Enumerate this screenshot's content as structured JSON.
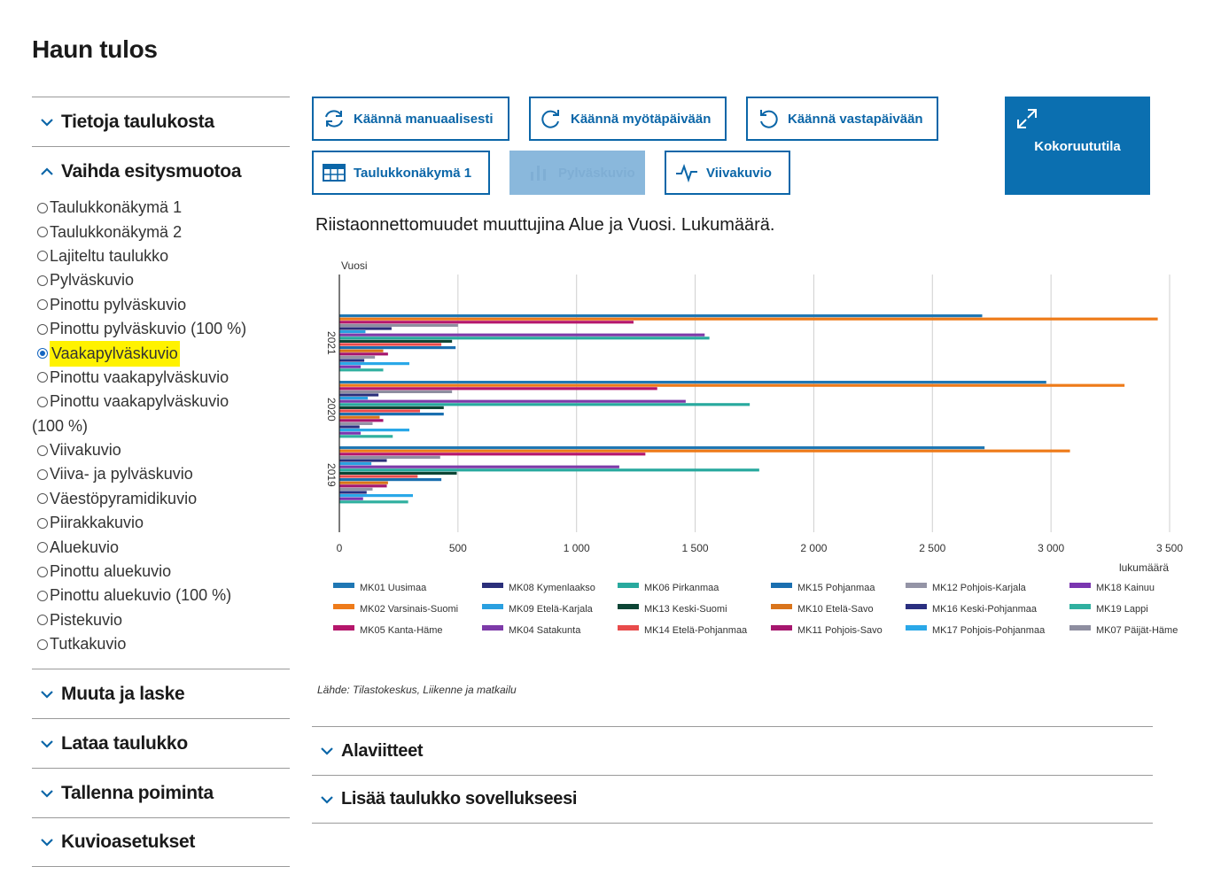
{
  "page": {
    "title": "Haun tulos"
  },
  "sidebar": {
    "sections": [
      {
        "label": "Tietoja taulukosta",
        "expanded": false
      },
      {
        "label": "Vaihda esitysmuotoa",
        "expanded": true
      },
      {
        "label": "Muuta ja laske",
        "expanded": false
      },
      {
        "label": "Lataa taulukko",
        "expanded": false
      },
      {
        "label": "Tallenna poiminta",
        "expanded": false
      },
      {
        "label": "Kuvioasetukset",
        "expanded": false
      }
    ],
    "options": [
      "Taulukkonäkymä 1",
      "Taulukkonäkymä 2",
      "Lajiteltu taulukko",
      "Pylväskuvio",
      "Pinottu pylväskuvio",
      "Pinottu pylväskuvio (100 %)",
      "Vaakapylväskuvio",
      "Pinottu vaakapylväskuvio",
      "Pinottu vaakapylväskuvio",
      "Viivakuvio",
      "Viiva- ja pylväskuvio",
      "Väestöpyramidikuvio",
      "Piirakkakuvio",
      "Aluekuvio",
      "Pinottu aluekuvio",
      "Pinottu aluekuvio (100 %)",
      "Pistekuvio",
      "Tutkakuvio"
    ],
    "option_continuation": "(100 %)",
    "selected_option": "Vaakapylväskuvio"
  },
  "toolbar": {
    "rotate_manual": "Käännä manuaalisesti",
    "rotate_cw": "Käännä myötäpäivään",
    "rotate_ccw": "Käännä vastapäivään",
    "fullscreen": "Kokoruututila",
    "table_view": "Taulukkonäkymä 1",
    "bar_chart": "Pylväskuvio",
    "line_chart": "Viivakuvio"
  },
  "source": "Lähde: Tilastokeskus, Liikenne ja matkailu",
  "bottom_sections": [
    {
      "label": "Alaviitteet"
    },
    {
      "label": "Lisää taulukko sovellukseesi"
    }
  ],
  "colors": {
    "accent": "#0b66a8",
    "highlight": "#fff200"
  },
  "chart_data": {
    "type": "bar",
    "orientation": "horizontal",
    "title": "Riistaonnettomuudet muuttujina Alue ja Vuosi. Lukumäärä.",
    "ylabel": "Vuosi",
    "xlabel": "lukumäärä",
    "categories": [
      "2021",
      "2020",
      "2019"
    ],
    "xlim": [
      0,
      3500
    ],
    "x_ticks": [
      0,
      500,
      1000,
      1500,
      2000,
      2500,
      3000,
      3500
    ],
    "x_tick_labels": [
      "0",
      "500",
      "1 000",
      "1 500",
      "2 000",
      "2 500",
      "3 000",
      "3 500"
    ],
    "grid": true,
    "legend_position": "bottom",
    "series": [
      {
        "name": "MK01 Uusimaa",
        "color": "#1f77b4",
        "values": [
          2710,
          2980,
          2720
        ]
      },
      {
        "name": "MK02 Varsinais-Suomi",
        "color": "#ee7b1a",
        "values": [
          3450,
          3310,
          3080
        ]
      },
      {
        "name": "MK05 Kanta-Häme",
        "color": "#b5166b",
        "values": [
          1240,
          1340,
          1290
        ]
      },
      {
        "name": "MK07 Päijät-Häme",
        "color": "#8e8ea0",
        "values": [
          500,
          475,
          425
        ]
      },
      {
        "name": "MK08 Kymenlaakso",
        "color": "#2b2f7a",
        "values": [
          220,
          165,
          200
        ]
      },
      {
        "name": "MK09 Etelä-Karjala",
        "color": "#2aa0e0",
        "values": [
          110,
          120,
          135
        ]
      },
      {
        "name": "MK04 Satakunta",
        "color": "#7d3aa8",
        "values": [
          1540,
          1460,
          1180
        ]
      },
      {
        "name": "MK06 Pirkanmaa",
        "color": "#28a99e",
        "values": [
          1560,
          1730,
          1770
        ]
      },
      {
        "name": "MK13 Keski-Suomi",
        "color": "#0d4535",
        "values": [
          475,
          440,
          495
        ]
      },
      {
        "name": "MK14 Etelä-Pohjanmaa",
        "color": "#e84b4b",
        "values": [
          430,
          340,
          330
        ]
      },
      {
        "name": "MK15 Pohjanmaa",
        "color": "#1a6fb0",
        "values": [
          490,
          440,
          430
        ]
      },
      {
        "name": "MK10 Etelä-Savo",
        "color": "#d9741b",
        "values": [
          185,
          170,
          205
        ]
      },
      {
        "name": "MK11 Pohjois-Savo",
        "color": "#a6166e",
        "values": [
          205,
          185,
          200
        ]
      },
      {
        "name": "MK12 Pohjois-Karjala",
        "color": "#9494a6",
        "values": [
          150,
          140,
          140
        ]
      },
      {
        "name": "MK16 Keski-Pohjanmaa",
        "color": "#2a2f80",
        "values": [
          105,
          85,
          115
        ]
      },
      {
        "name": "MK17 Pohjois-Pohjanmaa",
        "color": "#2aa8e8",
        "values": [
          295,
          295,
          310
        ]
      },
      {
        "name": "MK18 Kainuu",
        "color": "#7a36b0",
        "values": [
          90,
          90,
          100
        ]
      },
      {
        "name": "MK19 Lappi",
        "color": "#30b0a0",
        "values": [
          185,
          225,
          290
        ]
      }
    ],
    "legend_order": [
      "MK01 Uusimaa",
      "MK08 Kymenlaakso",
      "MK06 Pirkanmaa",
      "MK15 Pohjanmaa",
      "MK12 Pohjois-Karjala",
      "MK18 Kainuu",
      "MK02 Varsinais-Suomi",
      "MK09 Etelä-Karjala",
      "MK13 Keski-Suomi",
      "MK10 Etelä-Savo",
      "MK16 Keski-Pohjanmaa",
      "MK19 Lappi",
      "MK05 Kanta-Häme",
      "MK04 Satakunta",
      "MK14 Etelä-Pohjanmaa",
      "MK11 Pohjois-Savo",
      "MK17 Pohjois-Pohjanmaa",
      "MK07 Päijät-Häme"
    ]
  }
}
